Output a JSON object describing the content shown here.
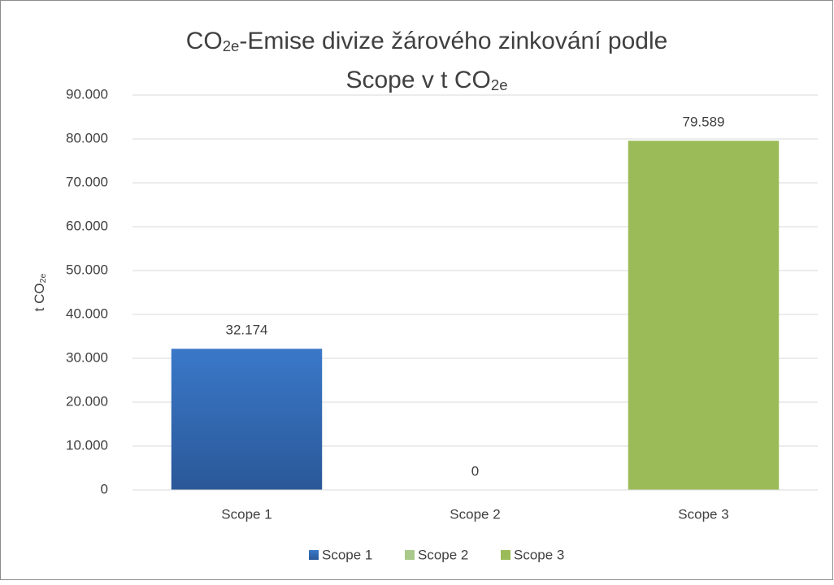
{
  "chart_data": {
    "type": "bar",
    "title": [
      [
        {
          "text": "CO"
        },
        {
          "text": "2e",
          "sub": true
        },
        {
          "text": "-Emise divize žárového zinkování podle"
        }
      ],
      [
        {
          "text": "Scope v t CO"
        },
        {
          "text": "2e",
          "sub": true
        }
      ]
    ],
    "y_label": [
      {
        "text": "t CO"
      },
      {
        "text": "2e",
        "sub": true
      }
    ],
    "categories": [
      "Scope 1",
      "Scope 2",
      "Scope 3"
    ],
    "values": [
      32174,
      0,
      79589
    ],
    "value_labels": [
      "32.174",
      "0",
      "79.589"
    ],
    "colors": [
      "#2e64b0",
      "#a9c98a",
      "#9bbb59"
    ],
    "ylim": [
      0,
      90000
    ],
    "yticks": [
      0,
      {
        "value": 10000,
        "label": "10.000"
      },
      {
        "value": 20000,
        "label": "20.000"
      },
      {
        "value": 30000,
        "label": "30.000"
      },
      {
        "value": 40000,
        "label": "40.000"
      },
      {
        "value": 50000,
        "label": "50.000"
      },
      {
        "value": 60000,
        "label": "60.000"
      },
      {
        "value": 70000,
        "label": "70.000"
      },
      {
        "value": 80000,
        "label": "80.000"
      },
      {
        "value": 90000,
        "label": "90.000"
      }
    ],
    "grid": true,
    "legend": "bottom"
  }
}
